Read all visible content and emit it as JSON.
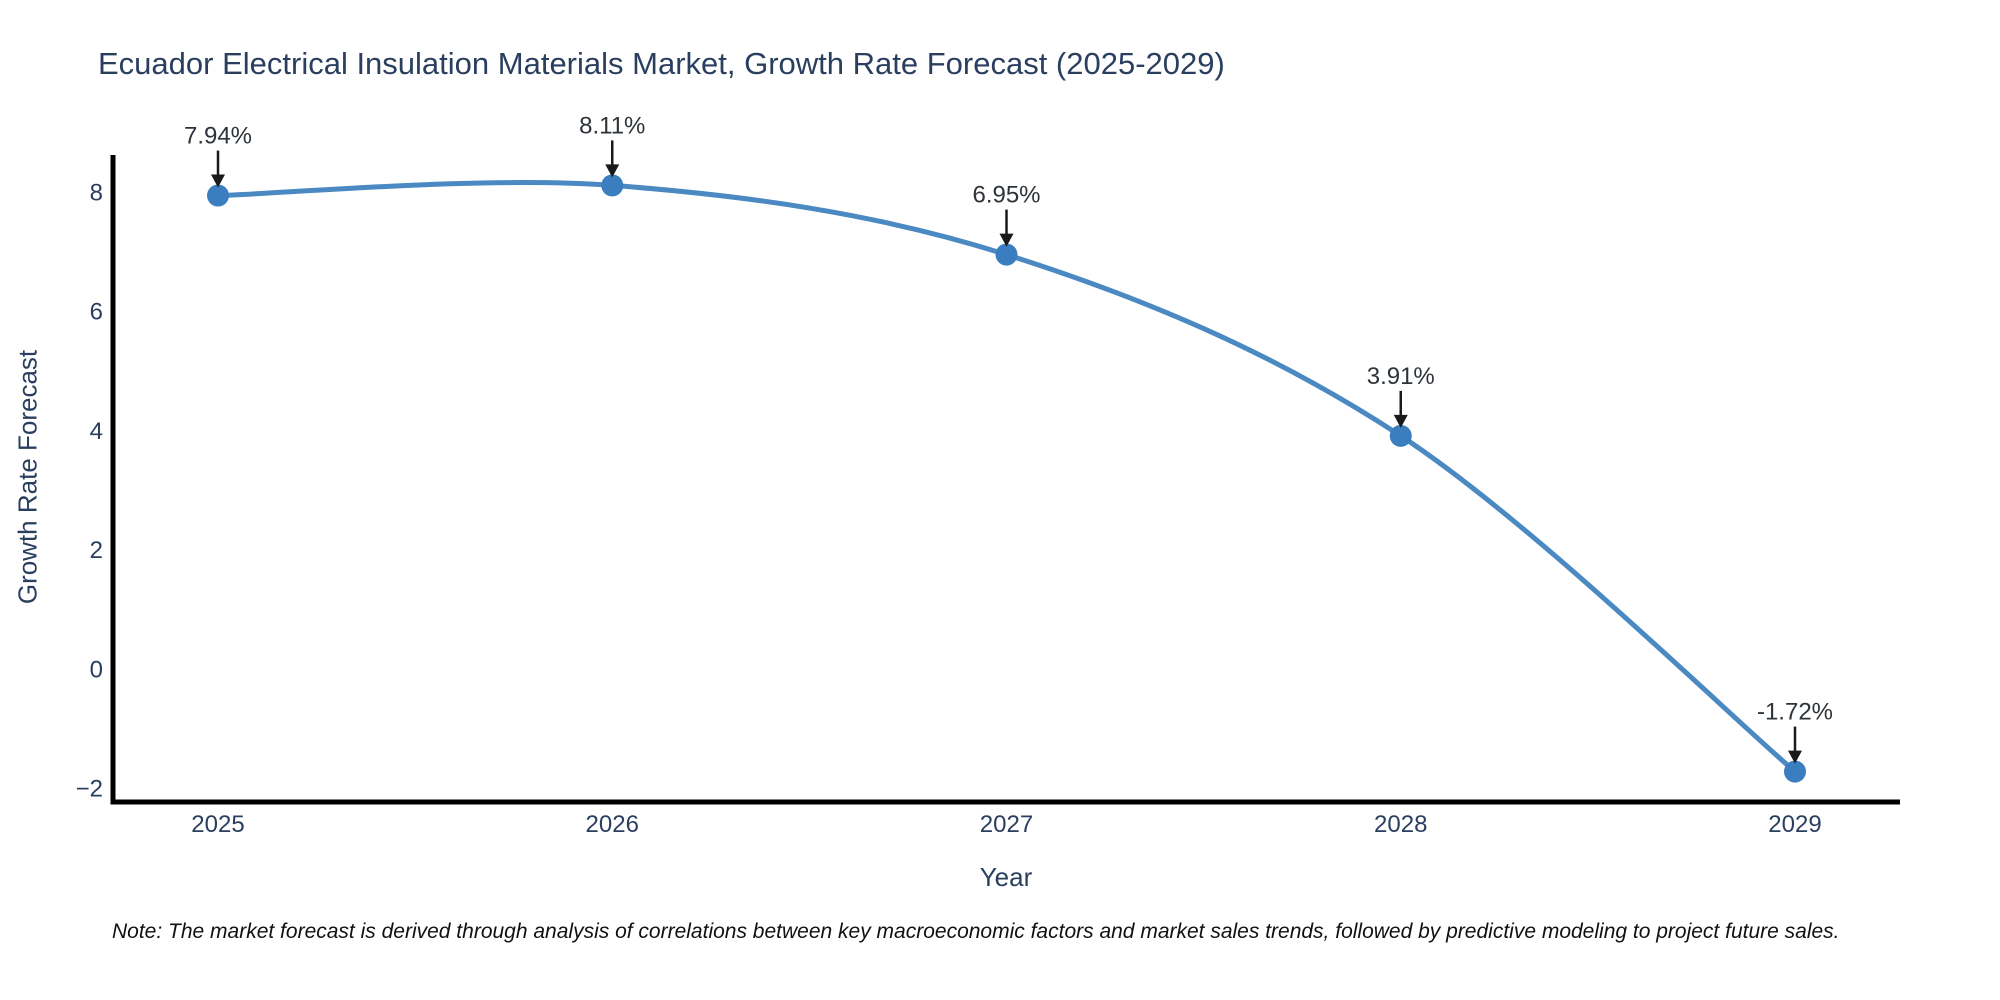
{
  "chart_data": {
    "type": "line",
    "title": "Ecuador Electrical Insulation Materials Market, Growth Rate Forecast (2025-2029)",
    "categories": [
      "2025",
      "2026",
      "2027",
      "2028",
      "2029"
    ],
    "values": [
      7.94,
      8.11,
      6.95,
      3.91,
      -1.72
    ],
    "point_labels": [
      "7.94%",
      "8.11%",
      "6.95%",
      "3.91%",
      "-1.72%"
    ],
    "xlabel": "Year",
    "ylabel": "Growth Rate Forecast",
    "y_ticks": [
      8,
      6,
      4,
      2,
      0,
      -2
    ],
    "y_tick_labels": [
      "8",
      "6",
      "4",
      "2",
      "0",
      "−2"
    ],
    "ylim": [
      -2.23,
      8.62
    ],
    "grid": false,
    "legend": "none",
    "line_color": "#4a89c2",
    "marker_color": "#3a7ebf",
    "axis_line_color": "#000000",
    "tick_text_color": "#2a3f5f",
    "annotation_text_color": "#2d3339",
    "annotation_arrow_color": "#1a1a1a",
    "note": "Note: The market forecast is derived through analysis of correlations between key macroeconomic factors and market sales trends, followed by predictive modeling to project future sales."
  }
}
